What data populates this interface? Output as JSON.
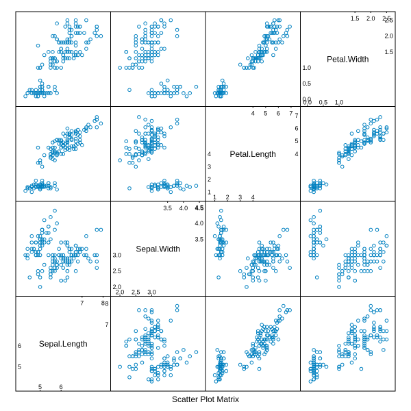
{
  "caption": "Scatter Plot Matrix",
  "chart_data": {
    "type": "scatter",
    "title": "Scatter Plot Matrix",
    "variables": [
      {
        "name": "Sepal.Length",
        "range": [
          4.1,
          8.1
        ],
        "ticks_left": [
          "5",
          "6"
        ],
        "ticks_right": [
          "7",
          "8"
        ]
      },
      {
        "name": "Sepal.Width",
        "range": [
          1.88,
          4.52
        ],
        "ticks_left": [
          "2.0",
          "2.5",
          "3.0"
        ],
        "ticks_right": [
          "3.5",
          "4.0",
          "4.5"
        ]
      },
      {
        "name": "Petal.Length",
        "range": [
          0.7,
          7.3
        ],
        "ticks_left": [
          "1",
          "2",
          "3",
          "4"
        ],
        "ticks_right": [
          "4",
          "5",
          "6",
          "7"
        ]
      },
      {
        "name": "Petal.Width",
        "range": [
          -0.05,
          2.6
        ],
        "ticks_left": [
          "0.0",
          "0.5",
          "1.0"
        ],
        "ticks_right": [
          "1.5",
          "2.0",
          "2.5"
        ]
      }
    ],
    "point_color": "#0080c0",
    "marker": "open-circle",
    "points": [
      [
        5.1,
        3.5,
        1.4,
        0.2
      ],
      [
        4.9,
        3.0,
        1.4,
        0.2
      ],
      [
        4.7,
        3.2,
        1.3,
        0.2
      ],
      [
        4.6,
        3.1,
        1.5,
        0.2
      ],
      [
        5.0,
        3.6,
        1.4,
        0.2
      ],
      [
        5.4,
        3.9,
        1.7,
        0.4
      ],
      [
        4.6,
        3.4,
        1.4,
        0.3
      ],
      [
        5.0,
        3.4,
        1.5,
        0.2
      ],
      [
        4.4,
        2.9,
        1.4,
        0.2
      ],
      [
        4.9,
        3.1,
        1.5,
        0.1
      ],
      [
        5.4,
        3.7,
        1.5,
        0.2
      ],
      [
        4.8,
        3.4,
        1.6,
        0.2
      ],
      [
        4.8,
        3.0,
        1.4,
        0.1
      ],
      [
        4.3,
        3.0,
        1.1,
        0.1
      ],
      [
        5.8,
        4.0,
        1.2,
        0.2
      ],
      [
        5.7,
        4.4,
        1.5,
        0.4
      ],
      [
        5.4,
        3.9,
        1.3,
        0.4
      ],
      [
        5.1,
        3.5,
        1.4,
        0.3
      ],
      [
        5.7,
        3.8,
        1.7,
        0.3
      ],
      [
        5.1,
        3.8,
        1.5,
        0.3
      ],
      [
        5.4,
        3.4,
        1.7,
        0.2
      ],
      [
        5.1,
        3.7,
        1.5,
        0.4
      ],
      [
        4.6,
        3.6,
        1.0,
        0.2
      ],
      [
        5.1,
        3.3,
        1.7,
        0.5
      ],
      [
        4.8,
        3.4,
        1.9,
        0.2
      ],
      [
        5.0,
        3.0,
        1.6,
        0.2
      ],
      [
        5.0,
        3.4,
        1.6,
        0.4
      ],
      [
        5.2,
        3.5,
        1.5,
        0.2
      ],
      [
        5.2,
        3.4,
        1.4,
        0.2
      ],
      [
        4.7,
        3.2,
        1.6,
        0.2
      ],
      [
        4.8,
        3.1,
        1.6,
        0.2
      ],
      [
        5.4,
        3.4,
        1.5,
        0.4
      ],
      [
        5.2,
        4.1,
        1.5,
        0.1
      ],
      [
        5.5,
        4.2,
        1.4,
        0.2
      ],
      [
        4.9,
        3.1,
        1.5,
        0.2
      ],
      [
        5.0,
        3.2,
        1.2,
        0.2
      ],
      [
        5.5,
        3.5,
        1.3,
        0.2
      ],
      [
        4.9,
        3.6,
        1.4,
        0.1
      ],
      [
        4.4,
        3.0,
        1.3,
        0.2
      ],
      [
        5.1,
        3.4,
        1.5,
        0.2
      ],
      [
        5.0,
        3.5,
        1.3,
        0.3
      ],
      [
        4.5,
        2.3,
        1.3,
        0.3
      ],
      [
        4.4,
        3.2,
        1.3,
        0.2
      ],
      [
        5.0,
        3.5,
        1.6,
        0.6
      ],
      [
        5.1,
        3.8,
        1.9,
        0.4
      ],
      [
        4.8,
        3.0,
        1.4,
        0.3
      ],
      [
        5.1,
        3.8,
        1.6,
        0.2
      ],
      [
        4.6,
        3.2,
        1.4,
        0.2
      ],
      [
        5.3,
        3.7,
        1.5,
        0.2
      ],
      [
        5.0,
        3.3,
        1.4,
        0.2
      ],
      [
        7.0,
        3.2,
        4.7,
        1.4
      ],
      [
        6.4,
        3.2,
        4.5,
        1.5
      ],
      [
        6.9,
        3.1,
        4.9,
        1.5
      ],
      [
        5.5,
        2.3,
        4.0,
        1.3
      ],
      [
        6.5,
        2.8,
        4.6,
        1.5
      ],
      [
        5.7,
        2.8,
        4.5,
        1.3
      ],
      [
        6.3,
        3.3,
        4.7,
        1.6
      ],
      [
        4.9,
        2.4,
        3.3,
        1.0
      ],
      [
        6.6,
        2.9,
        4.6,
        1.3
      ],
      [
        5.2,
        2.7,
        3.9,
        1.4
      ],
      [
        5.0,
        2.0,
        3.5,
        1.0
      ],
      [
        5.9,
        3.0,
        4.2,
        1.5
      ],
      [
        6.0,
        2.2,
        4.0,
        1.0
      ],
      [
        6.1,
        2.9,
        4.7,
        1.4
      ],
      [
        5.6,
        2.9,
        3.6,
        1.3
      ],
      [
        6.7,
        3.1,
        4.4,
        1.4
      ],
      [
        5.6,
        3.0,
        4.5,
        1.5
      ],
      [
        5.8,
        2.7,
        4.1,
        1.0
      ],
      [
        6.2,
        2.2,
        4.5,
        1.5
      ],
      [
        5.6,
        2.5,
        3.9,
        1.1
      ],
      [
        5.9,
        3.2,
        4.8,
        1.8
      ],
      [
        6.1,
        2.8,
        4.0,
        1.3
      ],
      [
        6.3,
        2.5,
        4.9,
        1.5
      ],
      [
        6.1,
        2.8,
        4.7,
        1.2
      ],
      [
        6.4,
        2.9,
        4.3,
        1.3
      ],
      [
        6.6,
        3.0,
        4.4,
        1.4
      ],
      [
        6.8,
        2.8,
        4.8,
        1.4
      ],
      [
        6.7,
        3.0,
        5.0,
        1.7
      ],
      [
        6.0,
        2.9,
        4.5,
        1.5
      ],
      [
        5.7,
        2.6,
        3.5,
        1.0
      ],
      [
        5.5,
        2.4,
        3.8,
        1.1
      ],
      [
        5.5,
        2.4,
        3.7,
        1.0
      ],
      [
        5.8,
        2.7,
        3.9,
        1.2
      ],
      [
        6.0,
        2.7,
        5.1,
        1.6
      ],
      [
        5.4,
        3.0,
        4.5,
        1.5
      ],
      [
        6.0,
        3.4,
        4.5,
        1.6
      ],
      [
        6.7,
        3.1,
        4.7,
        1.5
      ],
      [
        6.3,
        2.3,
        4.4,
        1.3
      ],
      [
        5.6,
        3.0,
        4.1,
        1.3
      ],
      [
        5.5,
        2.5,
        4.0,
        1.3
      ],
      [
        5.5,
        2.6,
        4.4,
        1.2
      ],
      [
        6.1,
        3.0,
        4.6,
        1.4
      ],
      [
        5.8,
        2.6,
        4.0,
        1.2
      ],
      [
        5.0,
        2.3,
        3.3,
        1.0
      ],
      [
        5.6,
        2.7,
        4.2,
        1.3
      ],
      [
        5.7,
        3.0,
        4.2,
        1.2
      ],
      [
        5.7,
        2.9,
        4.2,
        1.3
      ],
      [
        6.2,
        2.9,
        4.3,
        1.3
      ],
      [
        5.1,
        2.5,
        3.0,
        1.1
      ],
      [
        5.7,
        2.8,
        4.1,
        1.3
      ],
      [
        6.3,
        3.3,
        6.0,
        2.5
      ],
      [
        5.8,
        2.7,
        5.1,
        1.9
      ],
      [
        7.1,
        3.0,
        5.9,
        2.1
      ],
      [
        6.3,
        2.9,
        5.6,
        1.8
      ],
      [
        6.5,
        3.0,
        5.8,
        2.2
      ],
      [
        7.6,
        3.0,
        6.6,
        2.1
      ],
      [
        4.9,
        2.5,
        4.5,
        1.7
      ],
      [
        7.3,
        2.9,
        6.3,
        1.8
      ],
      [
        6.7,
        2.5,
        5.8,
        1.8
      ],
      [
        7.2,
        3.6,
        6.1,
        2.5
      ],
      [
        6.5,
        3.2,
        5.1,
        2.0
      ],
      [
        6.4,
        2.7,
        5.3,
        1.9
      ],
      [
        6.8,
        3.0,
        5.5,
        2.1
      ],
      [
        5.7,
        2.5,
        5.0,
        2.0
      ],
      [
        5.8,
        2.8,
        5.1,
        2.4
      ],
      [
        6.4,
        3.2,
        5.3,
        2.3
      ],
      [
        6.5,
        3.0,
        5.5,
        1.8
      ],
      [
        7.7,
        3.8,
        6.7,
        2.2
      ],
      [
        7.7,
        2.6,
        6.9,
        2.3
      ],
      [
        6.0,
        2.2,
        5.0,
        1.5
      ],
      [
        6.9,
        3.2,
        5.7,
        2.3
      ],
      [
        5.6,
        2.8,
        4.9,
        2.0
      ],
      [
        7.7,
        2.8,
        6.7,
        2.0
      ],
      [
        6.3,
        2.7,
        4.9,
        1.8
      ],
      [
        6.7,
        3.3,
        5.7,
        2.1
      ],
      [
        7.2,
        3.2,
        6.0,
        1.8
      ],
      [
        6.2,
        2.8,
        4.8,
        1.8
      ],
      [
        6.1,
        3.0,
        4.9,
        1.8
      ],
      [
        6.4,
        2.8,
        5.6,
        2.1
      ],
      [
        7.2,
        3.0,
        5.8,
        1.6
      ],
      [
        7.4,
        2.8,
        6.1,
        1.9
      ],
      [
        7.9,
        3.8,
        6.4,
        2.0
      ],
      [
        6.4,
        2.8,
        5.6,
        2.2
      ],
      [
        6.3,
        2.8,
        5.1,
        1.5
      ],
      [
        6.1,
        2.6,
        5.6,
        1.4
      ],
      [
        7.7,
        3.0,
        6.1,
        2.3
      ],
      [
        6.3,
        3.4,
        5.6,
        2.4
      ],
      [
        6.4,
        3.1,
        5.5,
        1.8
      ],
      [
        6.0,
        3.0,
        4.8,
        1.8
      ],
      [
        6.9,
        3.1,
        5.4,
        2.1
      ],
      [
        6.7,
        3.1,
        5.6,
        2.4
      ],
      [
        6.9,
        3.1,
        5.1,
        2.3
      ],
      [
        5.8,
        2.7,
        5.1,
        1.9
      ],
      [
        6.8,
        3.2,
        5.9,
        2.3
      ],
      [
        6.7,
        3.3,
        5.7,
        2.5
      ],
      [
        6.7,
        3.0,
        5.2,
        2.3
      ],
      [
        6.3,
        2.5,
        5.0,
        1.9
      ],
      [
        6.5,
        3.0,
        5.2,
        2.0
      ],
      [
        6.2,
        3.4,
        5.4,
        2.3
      ],
      [
        5.9,
        3.0,
        5.1,
        1.8
      ]
    ]
  }
}
